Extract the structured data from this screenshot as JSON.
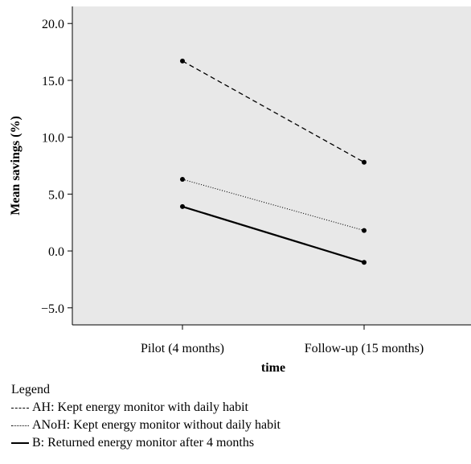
{
  "chart_data": {
    "type": "line",
    "xlabel": "time",
    "ylabel": "Mean savings (%)",
    "categories": [
      "Pilot (4 months)",
      "Follow-up (15 months)"
    ],
    "yticks": [
      "20.0",
      "15.0",
      "10.0",
      "5.0",
      "0.0",
      "−5.0"
    ],
    "ylim": [
      -6.5,
      21.5
    ],
    "grid": false,
    "series": [
      {
        "name": "AH",
        "style": "dashed",
        "values": [
          16.7,
          7.8
        ]
      },
      {
        "name": "ANoH",
        "style": "dotted",
        "values": [
          6.3,
          1.8
        ]
      },
      {
        "name": "B",
        "style": "solid",
        "values": [
          3.9,
          -1.0
        ]
      }
    ],
    "colors": {
      "plot_bg": "#e8e8e8",
      "line": "#000000"
    }
  },
  "legend": {
    "title": "Legend",
    "items": [
      {
        "style": "dashed",
        "label": "AH: Kept energy monitor with daily habit"
      },
      {
        "style": "dotted",
        "label": "ANoH: Kept energy monitor without daily habit"
      },
      {
        "style": "solid",
        "label": "B: Returned energy monitor after 4 months"
      }
    ]
  }
}
